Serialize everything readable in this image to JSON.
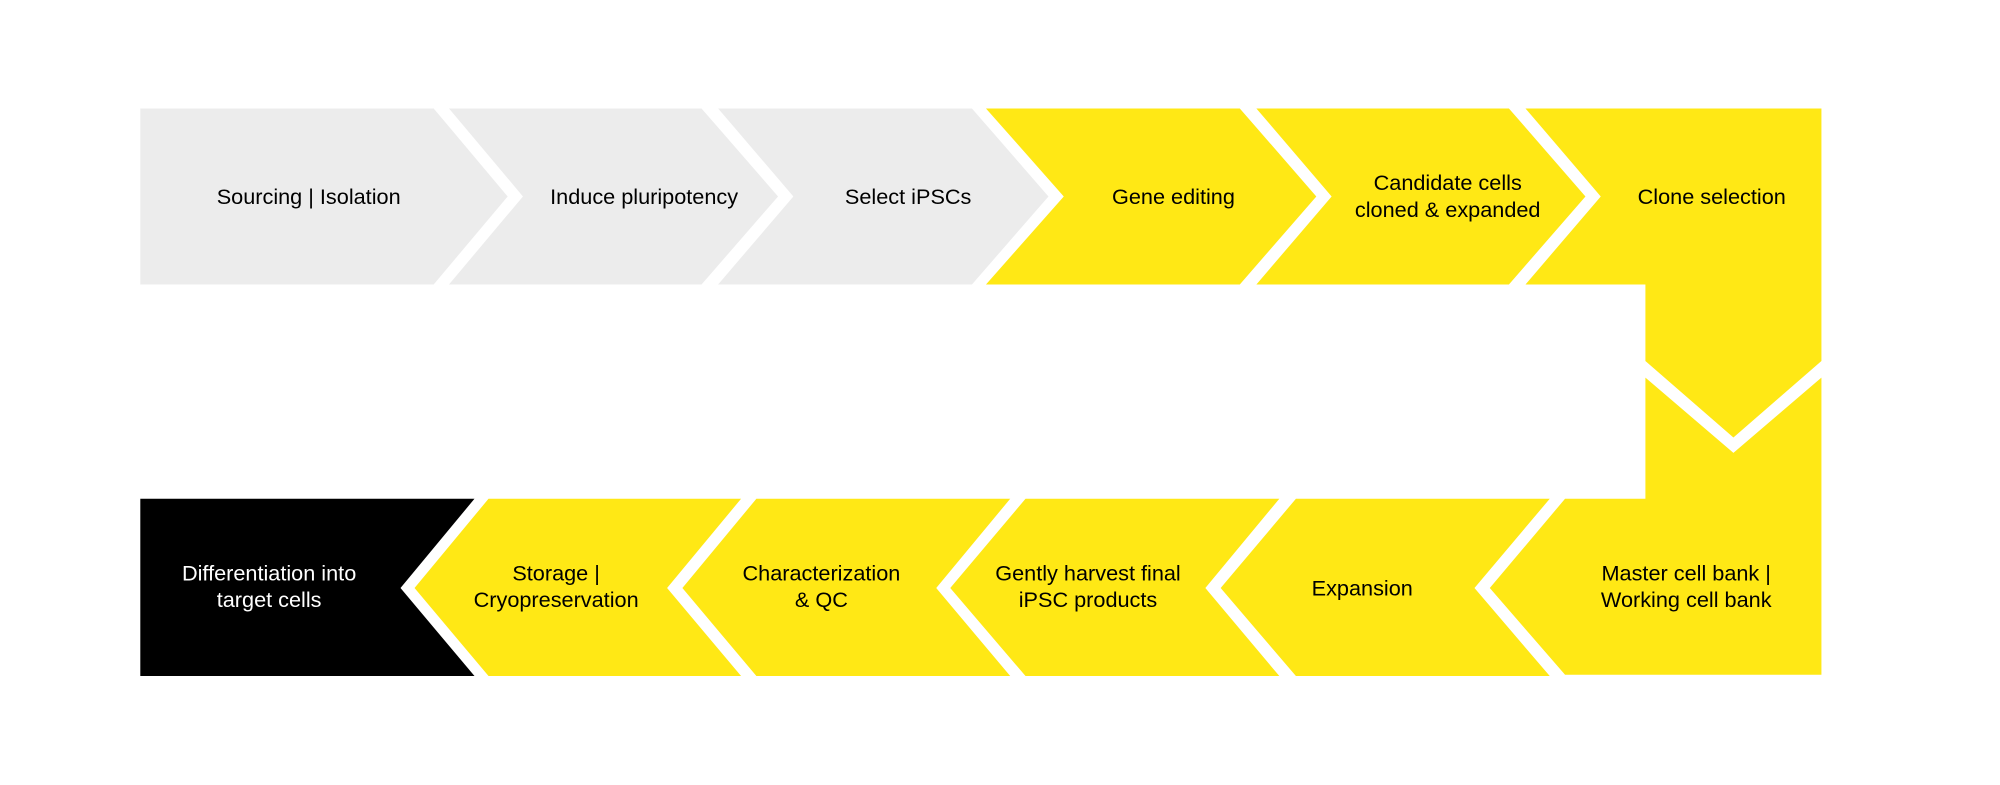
{
  "colors": {
    "inactive": "#ececec",
    "active": "#ffe815",
    "final": "#000000",
    "text_dark": "#000000",
    "text_light": "#ffffff"
  },
  "steps": [
    {
      "lines": [
        "Sourcing | Isolation"
      ],
      "state": "inactive"
    },
    {
      "lines": [
        "Induce pluripotency"
      ],
      "state": "inactive"
    },
    {
      "lines": [
        "Select iPSCs"
      ],
      "state": "inactive"
    },
    {
      "lines": [
        "Gene editing"
      ],
      "state": "active"
    },
    {
      "lines": [
        "Candidate cells",
        "cloned & expanded"
      ],
      "state": "active"
    },
    {
      "lines": [
        "Clone selection"
      ],
      "state": "active"
    },
    {
      "lines": [
        "Master cell bank |",
        "Working cell bank"
      ],
      "state": "active"
    },
    {
      "lines": [
        "Expansion"
      ],
      "state": "active"
    },
    {
      "lines": [
        "Gently harvest final",
        "iPSC products"
      ],
      "state": "active"
    },
    {
      "lines": [
        "Characterization",
        "& QC"
      ],
      "state": "active"
    },
    {
      "lines": [
        "Storage |",
        "Cryopreservation"
      ],
      "state": "active"
    },
    {
      "lines": [
        "Differentiation into",
        "target cells"
      ],
      "state": "final"
    }
  ]
}
